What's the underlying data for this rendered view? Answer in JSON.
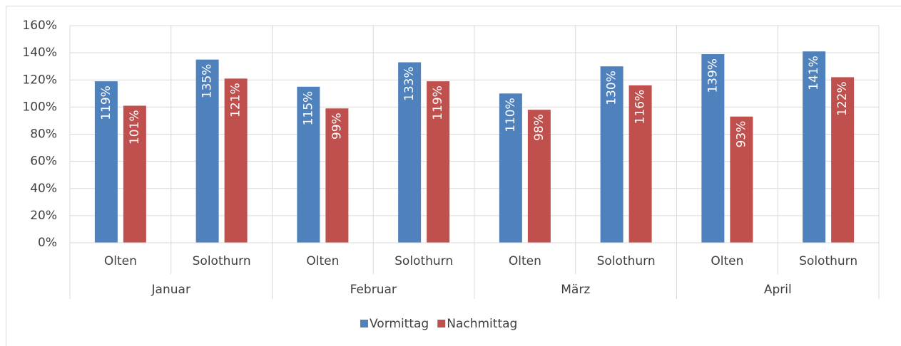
{
  "chart_data": {
    "type": "bar",
    "categories": [
      "Olten",
      "Solothurn",
      "Olten",
      "Solothurn",
      "Olten",
      "Solothurn",
      "Olten",
      "Solothurn"
    ],
    "category_groups": [
      "Januar",
      "Februar",
      "März",
      "April"
    ],
    "series": [
      {
        "name": "Vormittag",
        "color": "#4f81bd",
        "values": [
          119,
          135,
          115,
          133,
          110,
          130,
          139,
          141
        ],
        "value_labels": [
          "119%",
          "135%",
          "115%",
          "133%",
          "110%",
          "130%",
          "139%",
          "141%"
        ]
      },
      {
        "name": "Nachmittag",
        "color": "#c0504d",
        "values": [
          101,
          121,
          99,
          119,
          98,
          116,
          93,
          122
        ],
        "value_labels": [
          "101%",
          "121%",
          "99%",
          "119%",
          "98%",
          "116%",
          "93%",
          "122%"
        ]
      }
    ],
    "ylim": [
      0,
      160
    ],
    "yticks": [
      {
        "value": 0,
        "label": "0%"
      },
      {
        "value": 20,
        "label": "20%"
      },
      {
        "value": 40,
        "label": "40%"
      },
      {
        "value": 60,
        "label": "60%"
      },
      {
        "value": 80,
        "label": "80%"
      },
      {
        "value": 100,
        "label": "100%"
      },
      {
        "value": 120,
        "label": "120%"
      },
      {
        "value": 140,
        "label": "140%"
      },
      {
        "value": 160,
        "label": "160%"
      }
    ],
    "grid": true,
    "legend": "bottom"
  }
}
